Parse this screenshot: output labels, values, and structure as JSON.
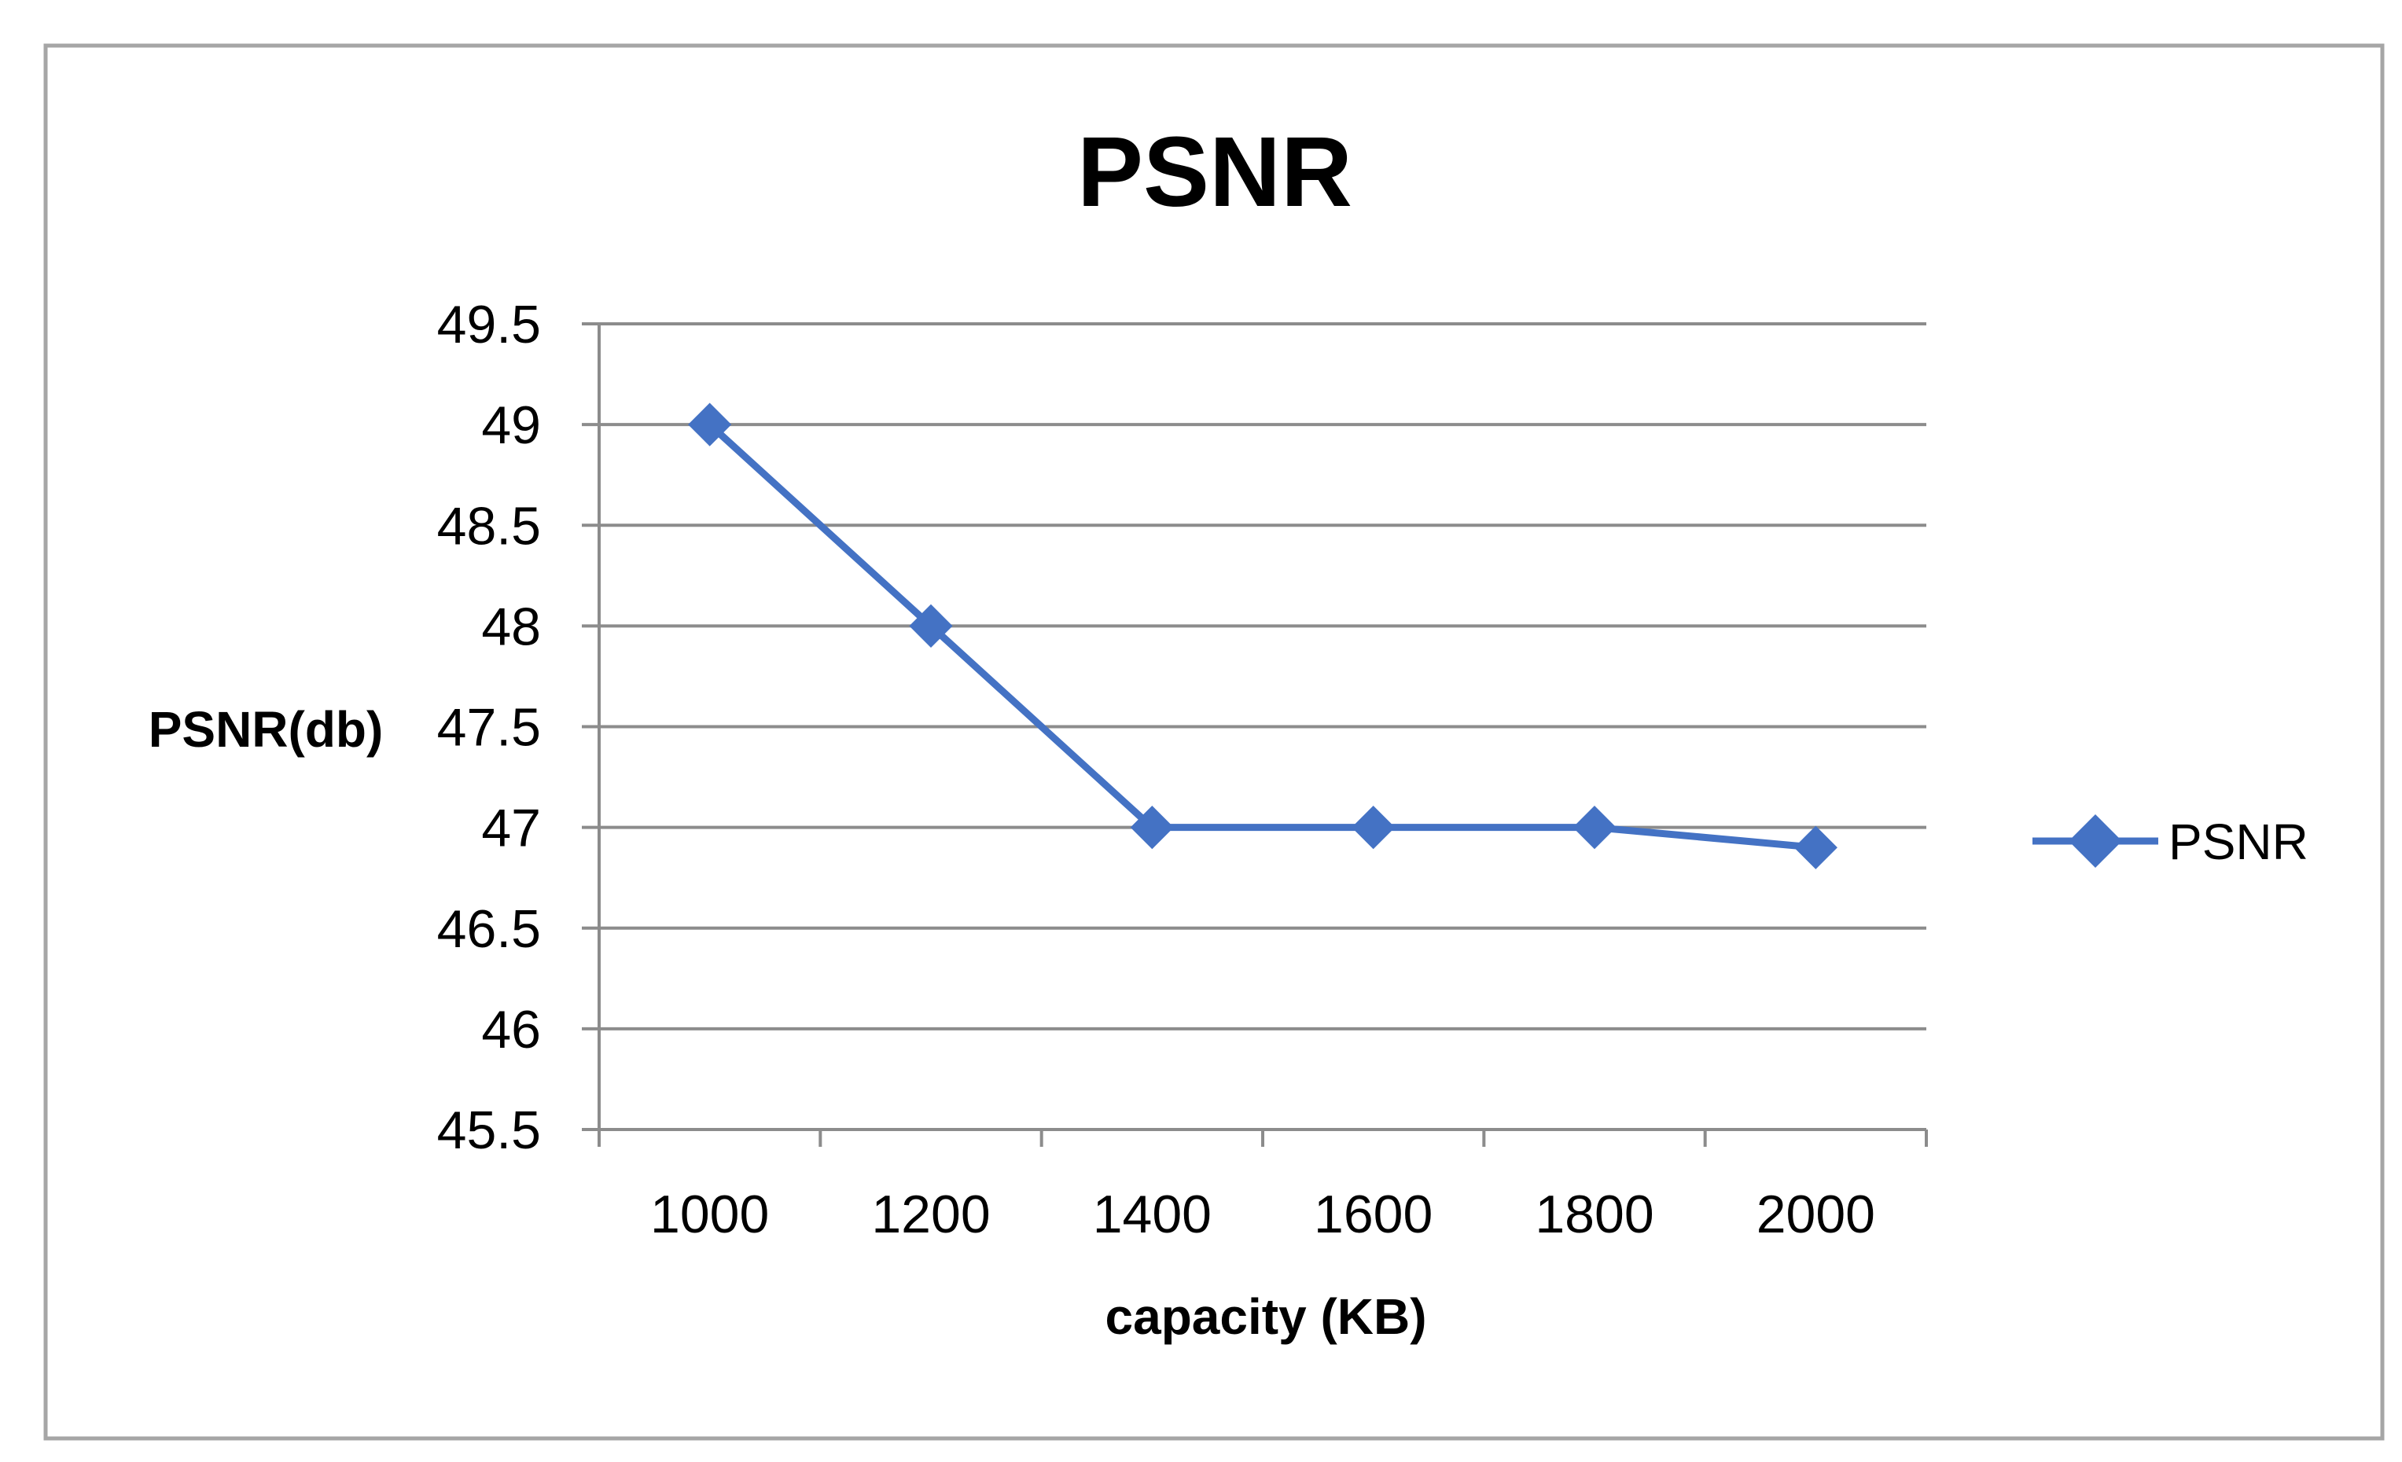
{
  "chart_data": {
    "type": "line",
    "title": "PSNR",
    "xlabel": "capacity (KB)",
    "ylabel": "PSNR(db)",
    "categories": [
      "1000",
      "1200",
      "1400",
      "1600",
      "1800",
      "2000"
    ],
    "ylim": [
      45.5,
      49.5
    ],
    "ytick_step": 0.5,
    "yticks": [
      "45.5",
      "46",
      "46.5",
      "47",
      "47.5",
      "48",
      "48.5",
      "49",
      "49.5"
    ],
    "series": [
      {
        "name": "PSNR",
        "values": [
          49,
          48,
          47,
          47,
          47,
          46.9
        ],
        "color": "#4472C4",
        "marker": "diamond"
      }
    ],
    "grid": "horizontal",
    "legend_position": "right",
    "frame_color": "#A6A6A6",
    "grid_color": "#8C8C8C"
  }
}
